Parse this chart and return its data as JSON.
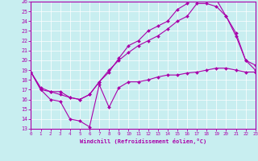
{
  "xlabel": "Windchill (Refroidissement éolien,°C)",
  "background_color": "#c8eef0",
  "line_color": "#aa00aa",
  "xlim": [
    0,
    23
  ],
  "ylim": [
    13,
    26
  ],
  "yticks": [
    13,
    14,
    15,
    16,
    17,
    18,
    19,
    20,
    21,
    22,
    23,
    24,
    25,
    26
  ],
  "xticks": [
    0,
    1,
    2,
    3,
    4,
    5,
    6,
    7,
    8,
    9,
    10,
    11,
    12,
    13,
    14,
    15,
    16,
    17,
    18,
    19,
    20,
    21,
    22,
    23
  ],
  "line1_x": [
    0,
    1,
    2,
    3,
    4,
    5,
    6,
    7,
    8,
    9,
    10,
    11,
    12,
    13,
    14,
    15,
    16,
    17,
    18,
    19,
    20,
    21,
    22,
    23
  ],
  "line1_y": [
    18.8,
    17.0,
    16.0,
    15.8,
    14.0,
    13.8,
    13.2,
    17.5,
    15.2,
    17.2,
    17.8,
    17.8,
    18.0,
    18.3,
    18.5,
    18.5,
    18.7,
    18.8,
    19.0,
    19.2,
    19.2,
    19.0,
    18.8,
    18.8
  ],
  "line2_x": [
    0,
    1,
    2,
    3,
    4,
    5,
    6,
    7,
    8,
    9,
    10,
    11,
    12,
    13,
    14,
    15,
    16,
    17,
    18,
    19,
    20,
    21,
    22,
    23
  ],
  "line2_y": [
    18.8,
    17.2,
    16.8,
    16.8,
    16.2,
    16.0,
    16.5,
    17.8,
    19.0,
    20.0,
    20.8,
    21.5,
    22.0,
    22.5,
    23.2,
    24.0,
    24.5,
    25.8,
    25.8,
    25.5,
    24.5,
    22.5,
    20.0,
    19.0
  ],
  "line3_x": [
    0,
    1,
    2,
    3,
    4,
    5,
    6,
    7,
    8,
    9,
    10,
    11,
    12,
    13,
    14,
    15,
    16,
    17,
    18,
    19,
    20,
    21,
    22,
    23
  ],
  "line3_y": [
    18.8,
    17.0,
    16.8,
    16.5,
    16.2,
    16.0,
    16.5,
    17.8,
    18.8,
    20.2,
    21.5,
    22.0,
    23.0,
    23.5,
    24.0,
    25.2,
    25.8,
    26.5,
    26.5,
    26.2,
    24.5,
    22.8,
    20.0,
    19.5
  ]
}
